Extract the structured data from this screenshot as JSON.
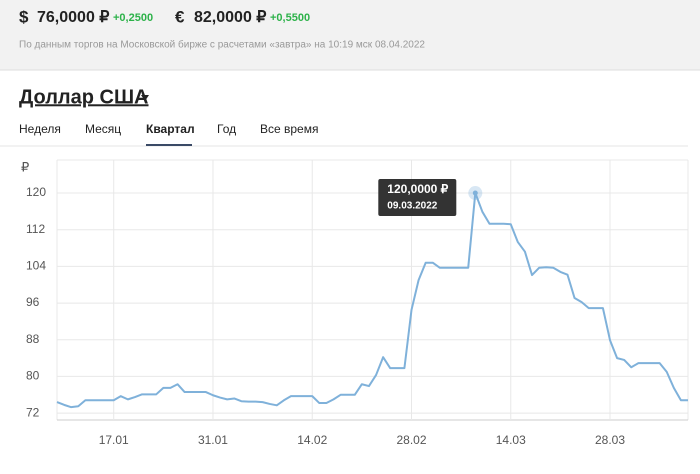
{
  "header": {
    "rates": [
      {
        "symbol": "$",
        "value": "76,0000 ₽",
        "change": "+0,2500"
      },
      {
        "symbol": "€",
        "value": "82,0000 ₽",
        "change": "+0,5500"
      }
    ],
    "note": "По данным торгов на Московской бирже с расчетами «завтра» на 10:19 мск 08.04.2022"
  },
  "title": "Доллар США",
  "tabs": [
    "Неделя",
    "Месяц",
    "Квартал",
    "Год",
    "Все время"
  ],
  "chart_data": {
    "type": "line",
    "y_label": "₽",
    "categories": [
      null,
      null,
      null,
      null,
      null,
      null,
      null,
      null,
      "17.01",
      null,
      null,
      null,
      null,
      null,
      null,
      null,
      null,
      null,
      null,
      null,
      null,
      null,
      "31.01",
      null,
      null,
      null,
      null,
      null,
      null,
      null,
      null,
      null,
      null,
      null,
      null,
      null,
      "14.02",
      null,
      null,
      null,
      null,
      null,
      null,
      null,
      null,
      null,
      null,
      null,
      null,
      null,
      "28.02",
      null,
      null,
      null,
      null,
      null,
      null,
      null,
      null,
      null,
      null,
      null,
      null,
      null,
      "14.03",
      null,
      null,
      null,
      null,
      null,
      null,
      null,
      null,
      null,
      null,
      null,
      null,
      null,
      "28.03",
      null,
      null,
      null,
      null,
      null,
      null,
      null,
      null,
      null,
      null,
      null
    ],
    "series": [
      {
        "color": "#7fb1da",
        "values": [
          74.4,
          73.8,
          73.3,
          73.5,
          74.8,
          74.8,
          74.8,
          74.8,
          74.8,
          75.7,
          75.0,
          75.5,
          76.1,
          76.1,
          76.1,
          77.5,
          77.5,
          78.3,
          76.6,
          76.6,
          76.6,
          76.6,
          75.9,
          75.4,
          75.0,
          75.2,
          74.6,
          74.5,
          74.5,
          74.4,
          74.0,
          73.7,
          74.8,
          75.7,
          75.7,
          75.7,
          75.7,
          74.2,
          74.2,
          75.0,
          76.0,
          76.0,
          76.0,
          78.3,
          77.9,
          80.3,
          84.2,
          81.8,
          81.8,
          81.8,
          94.5,
          101,
          104.8,
          104.8,
          103.7,
          103.7,
          103.7,
          103.7,
          103.7,
          120,
          115.9,
          113.3,
          113.3,
          113.3,
          113.2,
          109.3,
          107.2,
          102.1,
          103.7,
          103.8,
          103.7,
          102.8,
          102.2,
          97.1,
          96.2,
          94.9,
          94.9,
          94.9,
          87.9,
          84,
          83.6,
          82,
          82.9,
          82.9,
          82.9,
          82.9,
          81,
          77.5,
          74.8,
          74.8
        ]
      }
    ],
    "ylim": [
      70.5,
      127.2
    ],
    "yticks": [
      72,
      80,
      88,
      96,
      104,
      112,
      120
    ],
    "grid": true,
    "tooltip": {
      "value": "120,0000 ₽",
      "date": "09.03.2022"
    }
  }
}
